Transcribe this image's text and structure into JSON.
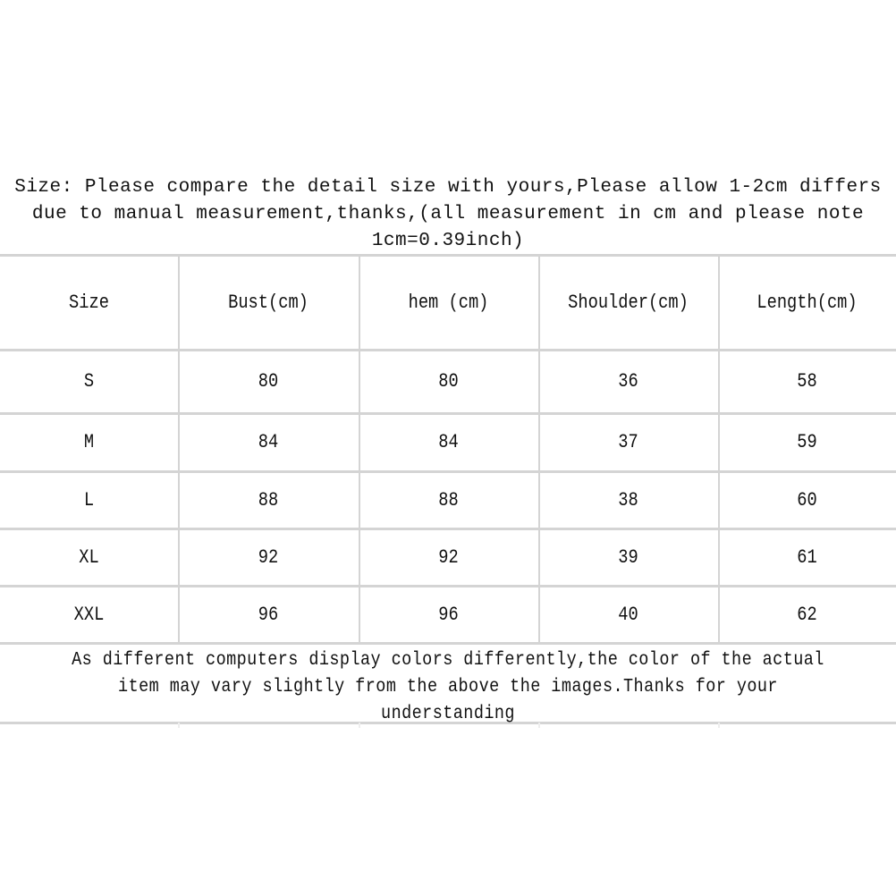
{
  "intro": {
    "lines": [
      "Size: Please compare the detail size with yours,Please allow 1-2cm differs",
      "due to manual measurement,thanks,(all measurement in cm and please note",
      "1cm=0.39inch)"
    ]
  },
  "table": {
    "headers": [
      "Size",
      "Bust(cm)",
      "hem (cm)",
      "Shoulder(cm)",
      "Length(cm)"
    ],
    "rows": [
      [
        "S",
        "80",
        "80",
        "36",
        "58"
      ],
      [
        "M",
        "84",
        "84",
        "37",
        "59"
      ],
      [
        "L",
        "88",
        "88",
        "38",
        "60"
      ],
      [
        "XL",
        "92",
        "92",
        "39",
        "61"
      ],
      [
        "XXL",
        "96",
        "96",
        "40",
        "62"
      ]
    ]
  },
  "footer": {
    "lines": [
      "As different computers display colors differently,the color of the actual",
      "item may vary slightly from the above the images.Thanks for your",
      "understanding"
    ]
  }
}
